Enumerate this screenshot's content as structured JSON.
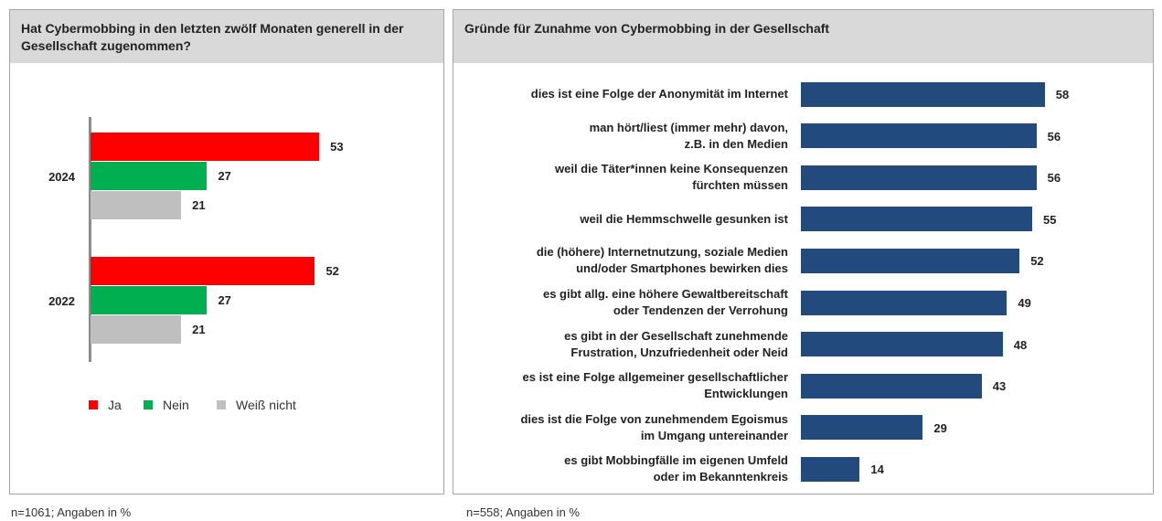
{
  "chart_data": [
    {
      "type": "grouped-hbar",
      "title": "Hat Cybermobbing in den letzten zwölf Monaten generell in der Gesellschaft zugenommen?",
      "categories": [
        "2024",
        "2022"
      ],
      "series": [
        {
          "name": "Ja",
          "color": "#ff0000",
          "values": [
            53,
            52
          ]
        },
        {
          "name": "Nein",
          "color": "#00b050",
          "values": [
            27,
            27
          ]
        },
        {
          "name": "Weiß nicht",
          "color": "#bfbfbf",
          "values": [
            21,
            21
          ]
        }
      ],
      "legend": "bottom",
      "note": "n=1061; Angaben in %"
    },
    {
      "type": "hbar",
      "title": "Gründe für Zunahme von Cybermobbing in der Gesellschaft",
      "categories": [
        "dies ist eine Folge der Anonymität im Internet",
        "man hört/liest (immer mehr) davon,\nz.B. in den Medien",
        "weil die Täter*innen keine Konsequenzen\nfürchten müssen",
        "weil die Hemmschwelle gesunken ist",
        "die (höhere) Internetnutzung, soziale Medien\nund/oder Smartphones bewirken dies",
        "es gibt allg. eine höhere Gewaltbereitschaft\noder Tendenzen der Verrohung",
        "es gibt in der Gesellschaft zunehmende\nFrustration, Unzufriedenheit oder Neid",
        "es ist eine Folge allgemeiner gesellschaftlicher\nEntwicklungen",
        "dies ist die Folge von zunehmendem Egoismus\nim Umgang untereinander",
        "es gibt Mobbingfälle im eigenen Umfeld\noder im Bekanntenkreis"
      ],
      "values": [
        58,
        56,
        56,
        55,
        52,
        49,
        48,
        43,
        29,
        14
      ],
      "color": "#234a7d",
      "note": "n=558; Angaben in %"
    }
  ]
}
